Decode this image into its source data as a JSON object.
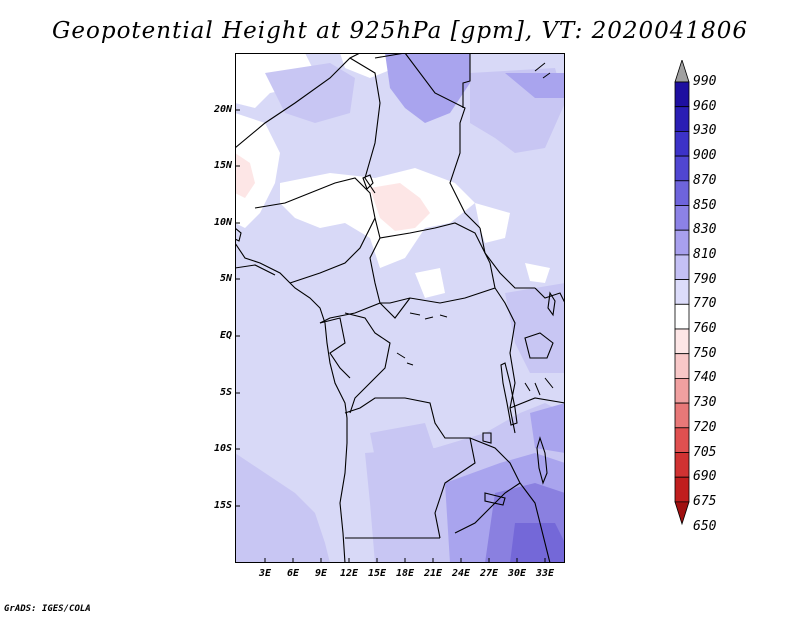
{
  "title": "Geopotential Height at 925hPa [gpm], VT: 2020041806",
  "credit": "GrADS: IGES/COLA",
  "lat_labels": [
    "20N",
    "15N",
    "10N",
    "5N",
    "EQ",
    "5S",
    "10S",
    "15S"
  ],
  "lon_labels": [
    "3E",
    "6E",
    "9E",
    "12E",
    "15E",
    "18E",
    "21E",
    "24E",
    "27E",
    "30E",
    "33E"
  ],
  "colorbar": {
    "labels": [
      "990",
      "960",
      "930",
      "900",
      "870",
      "850",
      "830",
      "810",
      "790",
      "770",
      "760",
      "750",
      "740",
      "730",
      "720",
      "705",
      "690",
      "675",
      "650"
    ],
    "colors": [
      "#a0a0a0",
      "#1e0fa0",
      "#2a1eb4",
      "#3c32c8",
      "#5046d2",
      "#6e64dc",
      "#8c82e6",
      "#a8a0ee",
      "#c4c0f5",
      "#dcdcfa",
      "#ffffff",
      "#fde6e6",
      "#f8c8c8",
      "#f0a0a0",
      "#e87878",
      "#e05050",
      "#d03232",
      "#c01e1e",
      "#a01010"
    ]
  },
  "map": {
    "background_color": "#d8d9f7",
    "overlay_colors": {
      "white": "#ffffff",
      "pink": "#fde6e6",
      "light_purple": "#c8c6f3",
      "medium_purple": "#a9a4ee",
      "dark_purple": "#8a80e0",
      "darkest_purple": "#7468d8"
    }
  }
}
